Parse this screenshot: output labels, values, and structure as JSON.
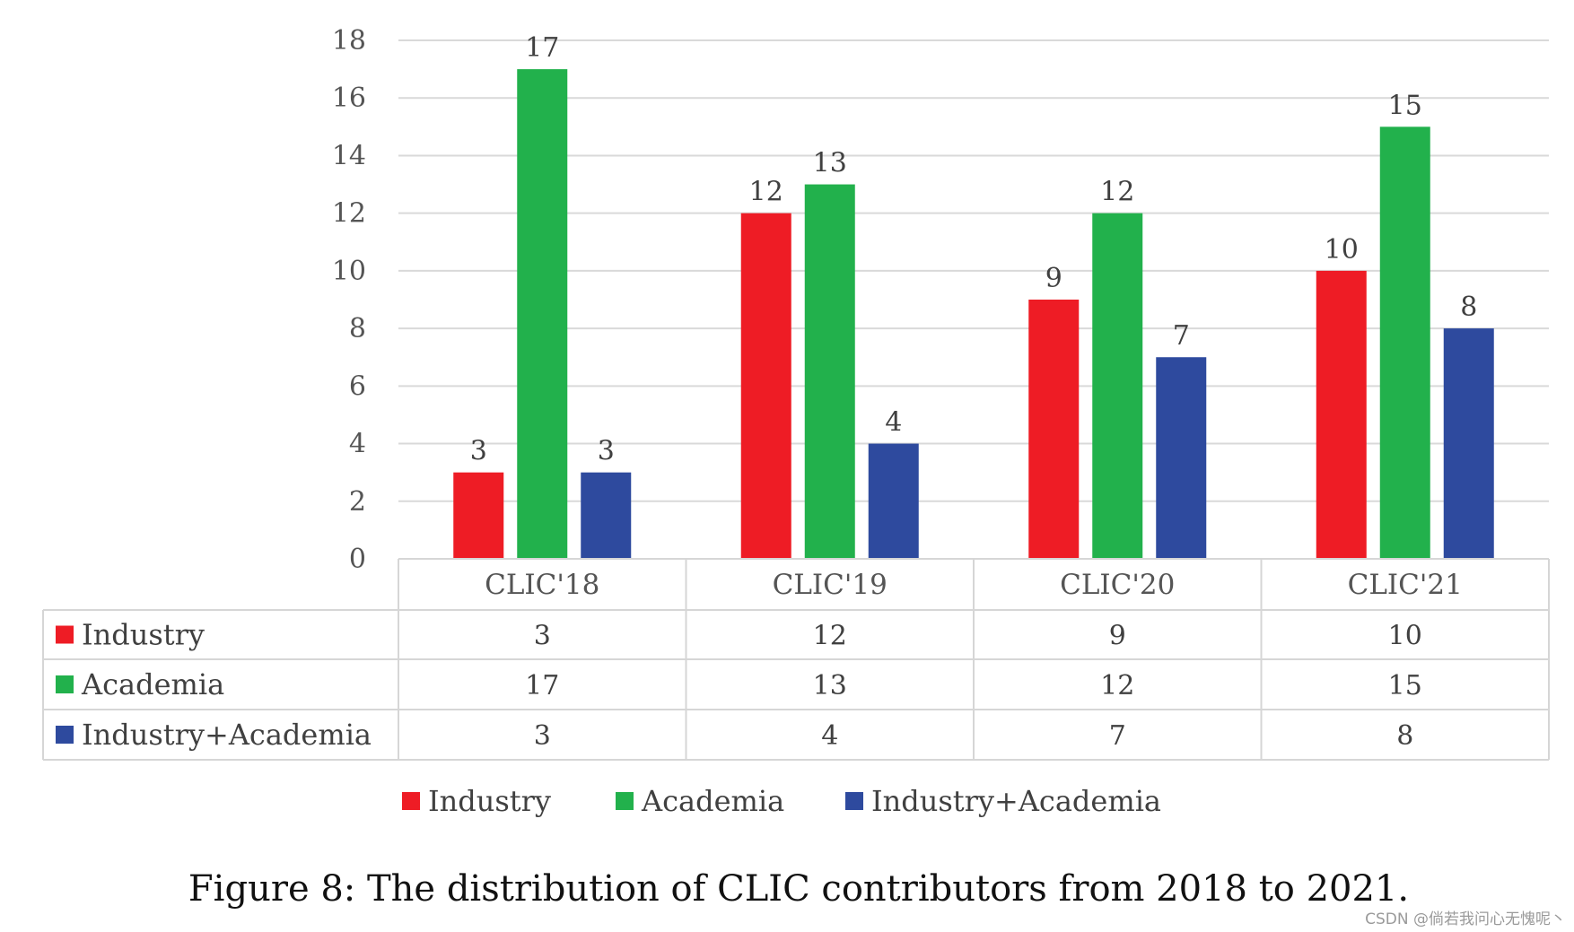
{
  "chart_data": {
    "type": "bar",
    "title": "",
    "xlabel": "",
    "ylabel": "",
    "ylim": [
      0,
      18
    ],
    "yticks": [
      0,
      2,
      4,
      6,
      8,
      10,
      12,
      14,
      16,
      18
    ],
    "grid": true,
    "categories": [
      "CLIC'18",
      "CLIC'19",
      "CLIC'20",
      "CLIC'21"
    ],
    "series": [
      {
        "name": "Industry",
        "color": "#ee1c25",
        "values": [
          3,
          12,
          9,
          10
        ]
      },
      {
        "name": "Academia",
        "color": "#22b14c",
        "values": [
          17,
          13,
          12,
          15
        ]
      },
      {
        "name": "Industry+Academia",
        "color": "#2e4a9e",
        "values": [
          3,
          4,
          7,
          8
        ]
      }
    ],
    "data_table": true,
    "legend_position": "bottom"
  },
  "caption": "Figure 8: The distribution of CLIC contributors from 2018 to 2021.",
  "watermark": "CSDN @倘若我问心无愧呢丶"
}
